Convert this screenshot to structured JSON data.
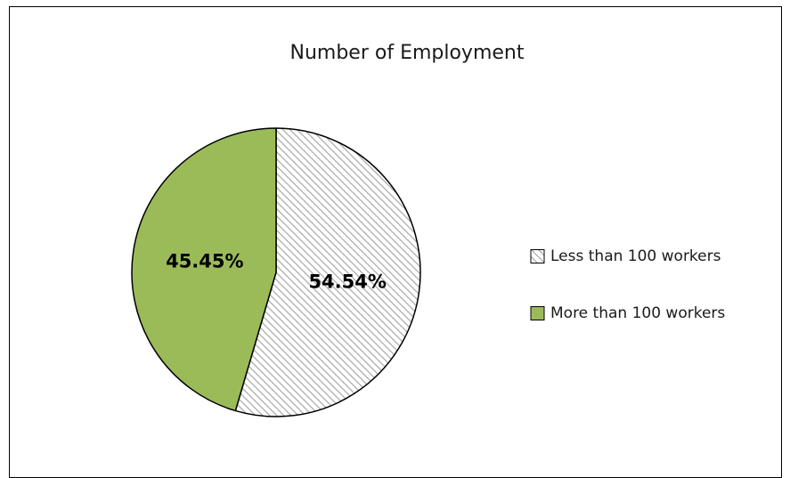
{
  "chart_data": {
    "type": "pie",
    "title": "Number of Employment",
    "slices": [
      {
        "label": "Less than 100 workers",
        "value": 54.54,
        "data_label": "54.54%",
        "fill": "hatched",
        "color": "#ffffff",
        "pattern_color": "#a6a6a6"
      },
      {
        "label": "More than 100 workers",
        "value": 45.45,
        "data_label": "45.45%",
        "fill": "solid",
        "color": "#9bbb59"
      }
    ],
    "start_angle": "12 o'clock",
    "direction": "clockwise",
    "legend_position": "right"
  }
}
